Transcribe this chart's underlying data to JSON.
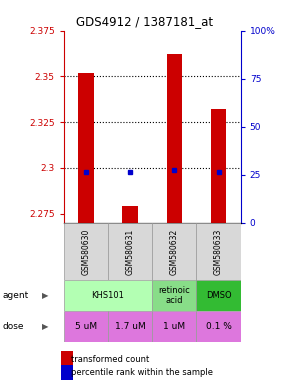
{
  "title": "GDS4912 / 1387181_at",
  "samples": [
    "GSM580630",
    "GSM580631",
    "GSM580632",
    "GSM580633"
  ],
  "red_values": [
    2.352,
    2.279,
    2.362,
    2.332
  ],
  "blue_values": [
    2.298,
    2.298,
    2.299,
    2.298
  ],
  "ymin": 2.27,
  "ymax": 2.375,
  "yticks_red": [
    2.275,
    2.3,
    2.325,
    2.35,
    2.375
  ],
  "yticks_blue": [
    0,
    25,
    50,
    75,
    100
  ],
  "ytick_red_labels": [
    "2.275",
    "2.3",
    "2.325",
    "2.35",
    "2.375"
  ],
  "ytick_blue_labels": [
    "0",
    "25",
    "50",
    "75",
    "100%"
  ],
  "hlines": [
    2.3,
    2.325,
    2.35
  ],
  "bar_bottom": 2.27,
  "bar_color": "#cc0000",
  "dot_color": "#0000cc",
  "agent_spans": [
    [
      0,
      2,
      "KHS101",
      "#b3ffb3"
    ],
    [
      2,
      3,
      "retinoic\nacid",
      "#88dd88"
    ],
    [
      3,
      4,
      "DMSO",
      "#33bb33"
    ]
  ],
  "dose_labels": [
    "5 uM",
    "1.7 uM",
    "1 uM",
    "0.1 %"
  ],
  "dose_color": "#dd77dd",
  "title_color": "#000000",
  "left_axis_color": "#cc0000",
  "right_axis_color": "#0000cc",
  "grid_color": "#888888"
}
